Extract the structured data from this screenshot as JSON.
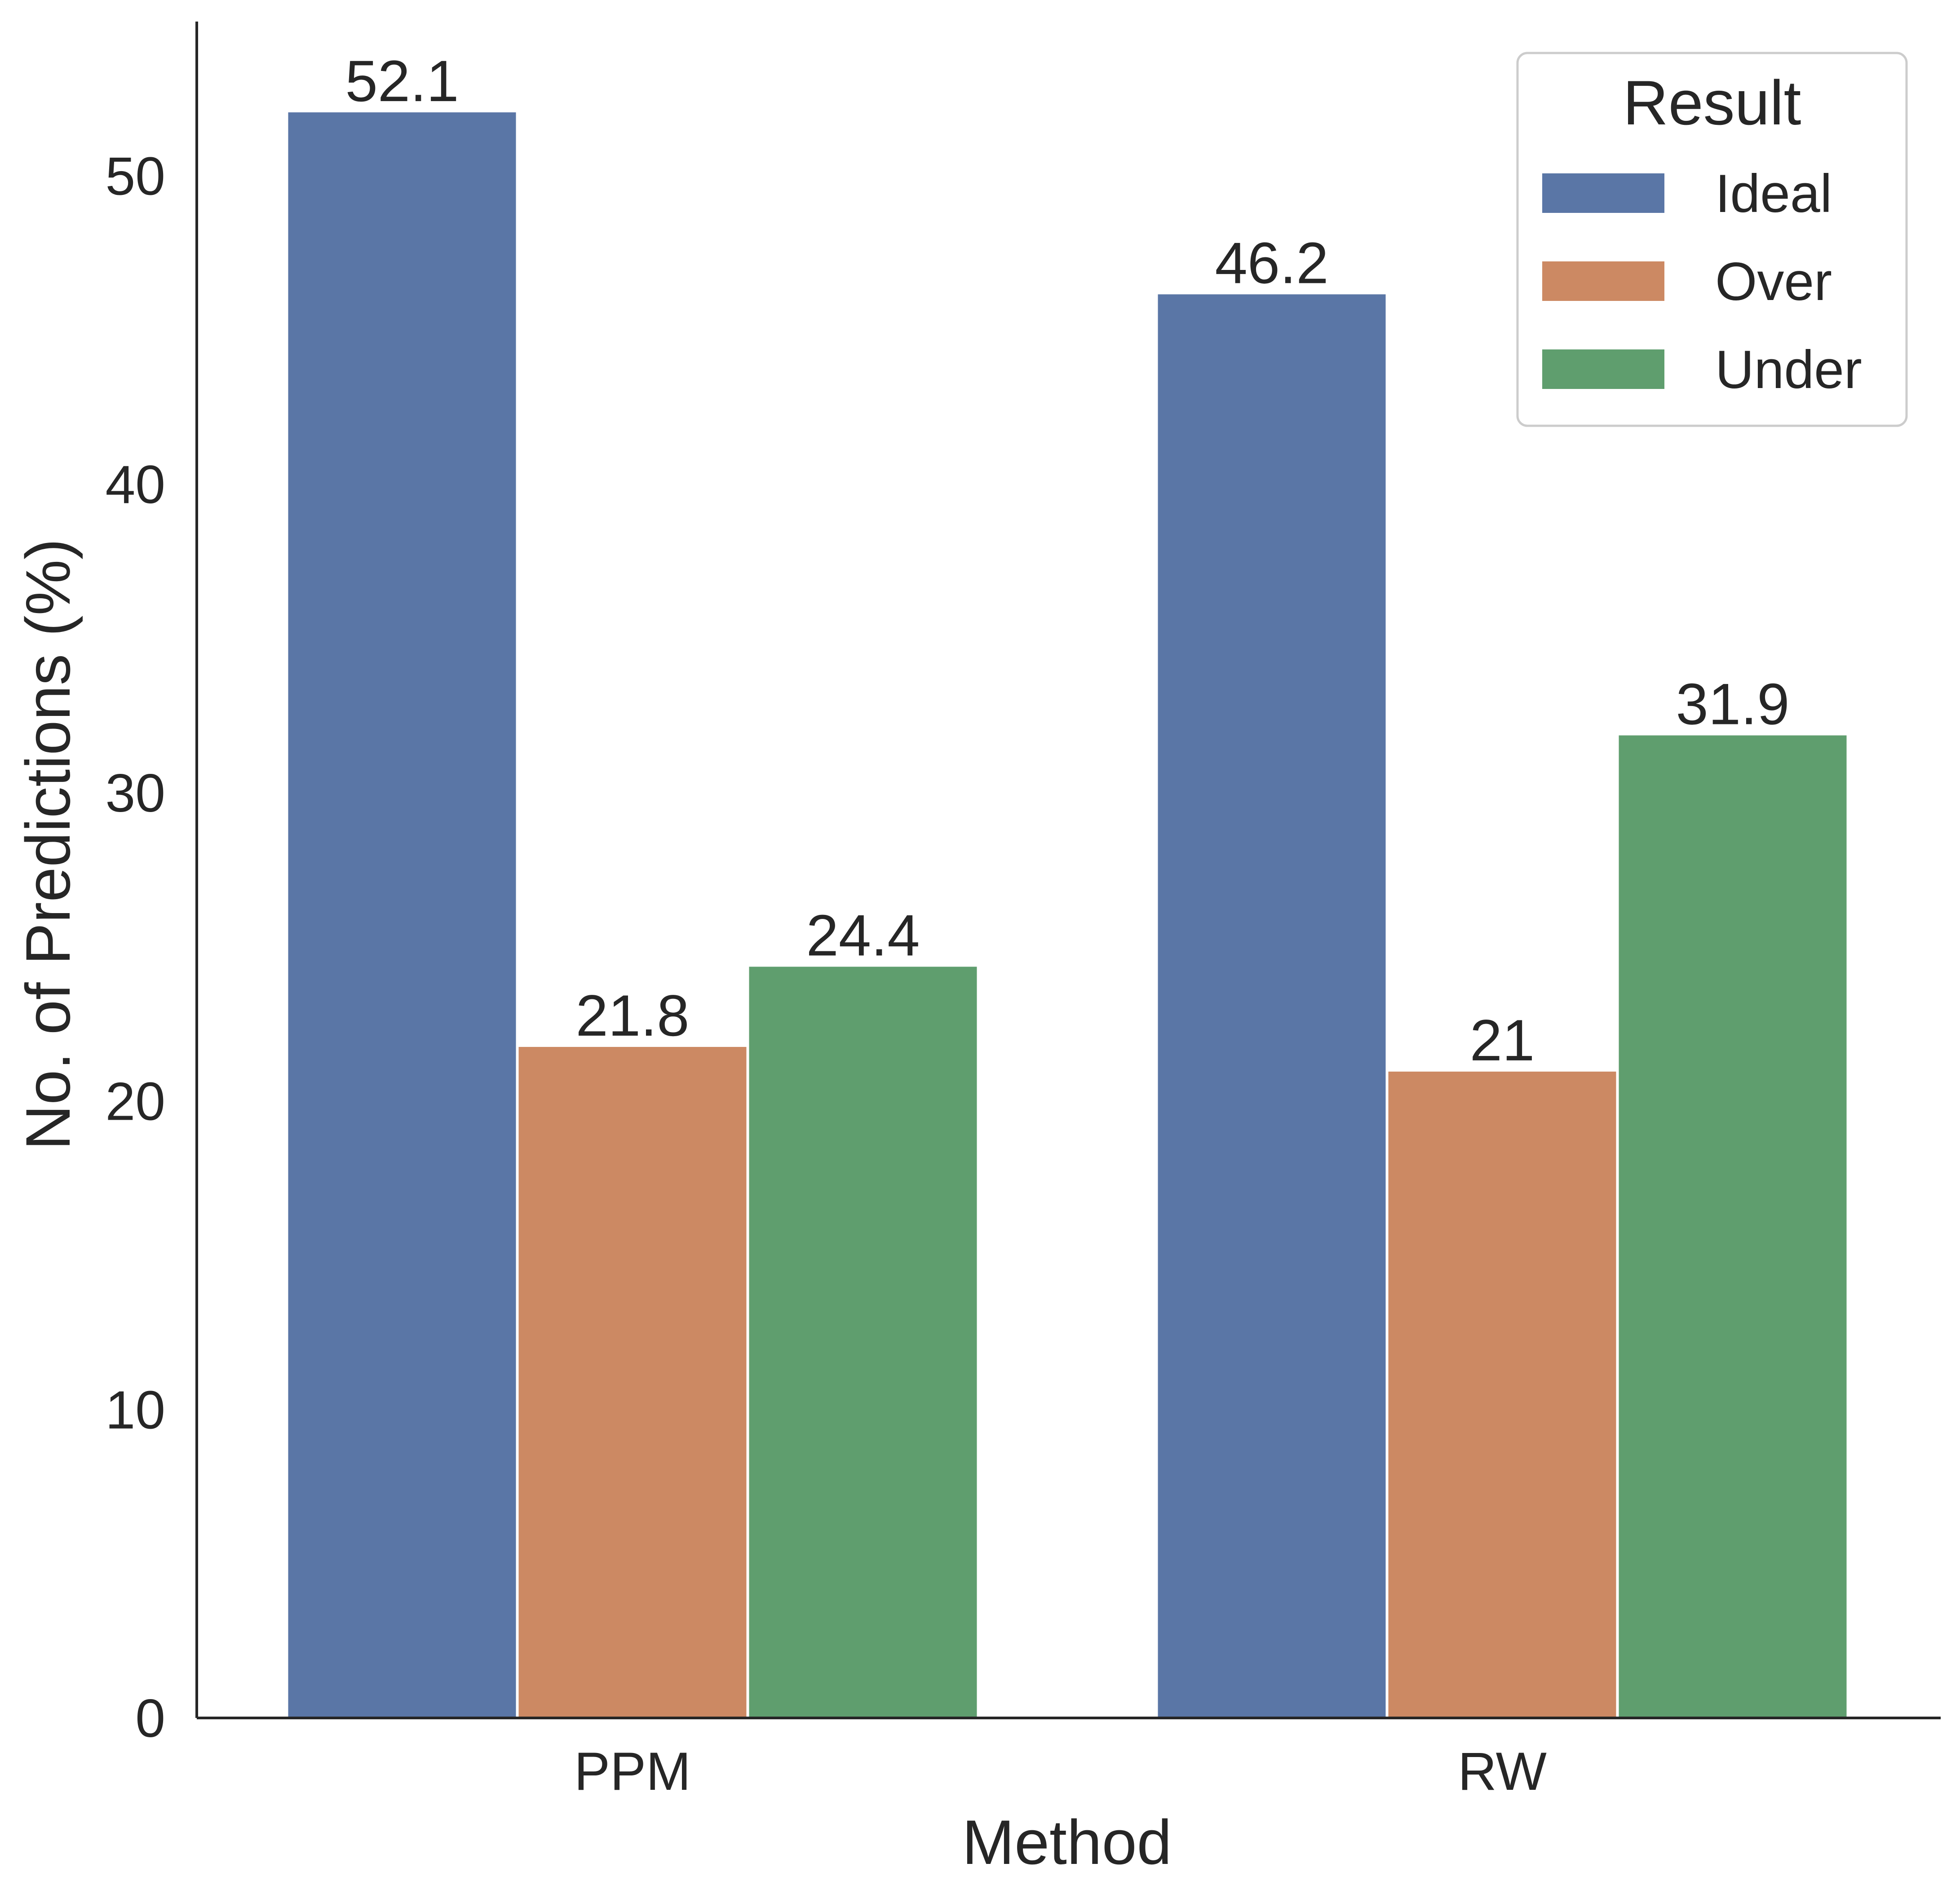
{
  "chart_data": {
    "type": "bar",
    "xlabel": "Method",
    "ylabel": "No. of Predictions (%)",
    "categories": [
      "PPM",
      "RW"
    ],
    "series": [
      {
        "name": "Ideal",
        "values": [
          52.1,
          46.2
        ],
        "labels": [
          "52.1",
          "46.2"
        ],
        "color": "#5A76A6"
      },
      {
        "name": "Over",
        "values": [
          21.8,
          21.0
        ],
        "labels": [
          "21.8",
          "21"
        ],
        "color": "#CC8963"
      },
      {
        "name": "Under",
        "values": [
          24.4,
          31.9
        ],
        "labels": [
          "24.4",
          "31.9"
        ],
        "color": "#5F9E6E"
      }
    ],
    "ylim": [
      0,
      55
    ],
    "yticks": [
      0,
      10,
      20,
      30,
      40,
      50
    ],
    "ytick_labels": [
      "0",
      "10",
      "20",
      "30",
      "40",
      "50"
    ],
    "grid": false,
    "legend": {
      "title": "Result",
      "placement": "top-right"
    }
  }
}
